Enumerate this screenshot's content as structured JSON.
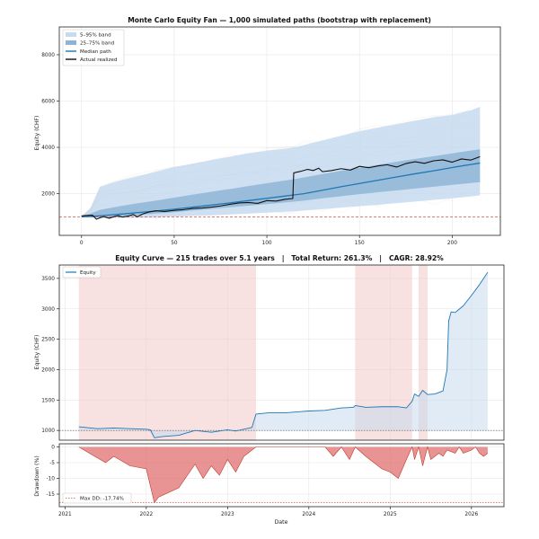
{
  "chart_data": [
    {
      "type": "area",
      "title": "Monte Carlo Equity Fan — 1,000 simulated paths (bootstrap with replacement)",
      "xlabel": "",
      "ylabel": "Equity (CHF)",
      "xlim": [
        -12,
        226
      ],
      "ylim": [
        200,
        9200
      ],
      "xticks": [
        0,
        50,
        100,
        150,
        200
      ],
      "yticks": [
        2000,
        4000,
        6000,
        8000
      ],
      "grid": true,
      "legend": {
        "position": "top-left",
        "entries": [
          "5–95% band",
          "25–75% band",
          "Median path",
          "Actual realized"
        ]
      },
      "reference_line": {
        "y": 1000,
        "style": "dashed",
        "color": "#d9534f"
      },
      "x": [
        0,
        5,
        10,
        20,
        30,
        40,
        50,
        60,
        70,
        80,
        90,
        100,
        110,
        115,
        120,
        130,
        140,
        150,
        160,
        170,
        180,
        190,
        200,
        210,
        215
      ],
      "series": [
        {
          "name": "5–95% band",
          "kind": "band",
          "lower": [
            1000,
            980,
            960,
            950,
            960,
            980,
            1010,
            1040,
            1070,
            1100,
            1140,
            1180,
            1220,
            1240,
            1270,
            1330,
            1400,
            1460,
            1520,
            1590,
            1660,
            1730,
            1800,
            1880,
            1930
          ],
          "upper": [
            1000,
            1400,
            2300,
            2550,
            2750,
            2950,
            3150,
            3300,
            3450,
            3600,
            3750,
            3850,
            3950,
            4000,
            4100,
            4300,
            4500,
            4700,
            4850,
            5000,
            5150,
            5300,
            5400,
            5600,
            5750
          ]
        },
        {
          "name": "25–75% band",
          "kind": "band",
          "lower": [
            1000,
            980,
            970,
            1020,
            1080,
            1140,
            1200,
            1270,
            1340,
            1410,
            1480,
            1550,
            1620,
            1660,
            1700,
            1800,
            1890,
            1980,
            2060,
            2140,
            2220,
            2300,
            2380,
            2460,
            2500
          ],
          "upper": [
            1000,
            1150,
            1300,
            1450,
            1580,
            1700,
            1830,
            1960,
            2080,
            2200,
            2330,
            2450,
            2570,
            2630,
            2700,
            2850,
            2990,
            3120,
            3250,
            3380,
            3500,
            3620,
            3740,
            3860,
            3920
          ]
        },
        {
          "name": "Median path",
          "kind": "line",
          "values": [
            1000,
            1020,
            1050,
            1110,
            1180,
            1250,
            1330,
            1420,
            1510,
            1600,
            1700,
            1800,
            1900,
            1950,
            2000,
            2150,
            2300,
            2440,
            2580,
            2720,
            2860,
            2990,
            3130,
            3260,
            3320
          ]
        }
      ],
      "actual": {
        "name": "Actual realized",
        "x": [
          0,
          3,
          6,
          8,
          10,
          12,
          15,
          18,
          20,
          22,
          25,
          28,
          30,
          33,
          36,
          40,
          45,
          50,
          55,
          60,
          65,
          70,
          75,
          80,
          85,
          90,
          95,
          100,
          105,
          110,
          114,
          114.5,
          118,
          122,
          125,
          128,
          130,
          135,
          140,
          145,
          150,
          155,
          160,
          165,
          170,
          175,
          180,
          185,
          190,
          195,
          200,
          205,
          210,
          215
        ],
        "y": [
          1040,
          1060,
          1070,
          900,
          960,
          1010,
          940,
          1020,
          1050,
          990,
          1030,
          1100,
          1000,
          1120,
          1200,
          1260,
          1230,
          1280,
          1310,
          1360,
          1380,
          1420,
          1470,
          1540,
          1600,
          1620,
          1580,
          1700,
          1680,
          1760,
          1790,
          2900,
          2960,
          3050,
          3000,
          3100,
          2950,
          3000,
          3080,
          3020,
          3180,
          3120,
          3200,
          3250,
          3150,
          3300,
          3380,
          3310,
          3420,
          3460,
          3360,
          3500,
          3450,
          3600
        ]
      }
    },
    {
      "type": "line",
      "title": "Equity Curve — 215 trades over 5.1 years   |   Total Return: 261.3%   |   CAGR: 28.92%",
      "xlabel": "",
      "ylabel": "Equity (CHF)",
      "xlim": [
        2020.93,
        2026.4
      ],
      "ylim": [
        840,
        3720
      ],
      "yticks": [
        1000,
        1500,
        2000,
        2500,
        3000,
        3500
      ],
      "grid": true,
      "legend": {
        "position": "top-left",
        "entries": [
          "Equity"
        ]
      },
      "reference_line": {
        "y": 1000,
        "style": "dotted",
        "color": "#555555"
      },
      "drawdown_periods": [
        [
          2021.17,
          2023.35
        ],
        [
          2024.57,
          2025.27
        ],
        [
          2025.35,
          2025.46
        ]
      ],
      "series": [
        {
          "name": "Equity",
          "x": [
            2021.17,
            2021.4,
            2021.6,
            2021.8,
            2022.0,
            2022.05,
            2022.1,
            2022.2,
            2022.4,
            2022.6,
            2022.8,
            2023.0,
            2023.1,
            2023.2,
            2023.3,
            2023.35,
            2023.5,
            2023.7,
            2023.9,
            2024.0,
            2024.2,
            2024.4,
            2024.55,
            2024.57,
            2024.7,
            2024.9,
            2025.1,
            2025.2,
            2025.27,
            2025.3,
            2025.35,
            2025.4,
            2025.46,
            2025.55,
            2025.65,
            2025.7,
            2025.72,
            2025.75,
            2025.8,
            2025.9,
            2026.0,
            2026.1,
            2026.2
          ],
          "values": [
            1060,
            1030,
            1040,
            1030,
            1020,
            1010,
            880,
            900,
            920,
            1000,
            970,
            1010,
            990,
            1020,
            1050,
            1270,
            1290,
            1290,
            1310,
            1320,
            1330,
            1370,
            1380,
            1410,
            1380,
            1390,
            1390,
            1370,
            1480,
            1600,
            1560,
            1660,
            1590,
            1600,
            1650,
            2000,
            2800,
            2950,
            2940,
            3050,
            3220,
            3400,
            3600
          ]
        }
      ]
    },
    {
      "type": "area",
      "title": "",
      "xlabel": "Date",
      "ylabel": "Drawdown (%)",
      "xlim": [
        2020.93,
        2026.4
      ],
      "ylim": [
        -19,
        1
      ],
      "xticks": [
        2021,
        2022,
        2023,
        2024,
        2025,
        2026
      ],
      "yticks": [
        0,
        -5,
        -10,
        -15
      ],
      "grid": true,
      "legend": {
        "position": "bottom-left",
        "entries": [
          "Max DD: -17.74%"
        ]
      },
      "reference_line": {
        "y": -17.74,
        "style": "dotted",
        "color": "#d9534f"
      },
      "series": [
        {
          "name": "Drawdown",
          "x": [
            2021.17,
            2021.3,
            2021.5,
            2021.6,
            2021.8,
            2022.0,
            2022.1,
            2022.15,
            2022.4,
            2022.6,
            2022.7,
            2022.8,
            2022.9,
            2023.0,
            2023.1,
            2023.2,
            2023.3,
            2023.35,
            2024.2,
            2024.3,
            2024.4,
            2024.5,
            2024.57,
            2024.7,
            2024.8,
            2024.9,
            2025.0,
            2025.1,
            2025.2,
            2025.27,
            2025.3,
            2025.35,
            2025.4,
            2025.46,
            2025.5,
            2025.6,
            2025.65,
            2025.7,
            2025.8,
            2025.85,
            2025.9,
            2026.0,
            2026.05,
            2026.1,
            2026.15,
            2026.2
          ],
          "values": [
            0,
            -2,
            -5,
            -3,
            -6,
            -7,
            -17.74,
            -16,
            -13,
            -5.5,
            -10,
            -6,
            -9,
            -4,
            -8,
            -3,
            -1,
            0,
            0,
            -3,
            0,
            -4,
            0,
            -3,
            -5,
            -7,
            -8,
            -10,
            -4,
            0,
            -4,
            0,
            -6,
            0,
            -4,
            -2,
            -3,
            -1,
            -2,
            0,
            -2,
            -1,
            0,
            -2,
            -3,
            -2
          ]
        }
      ]
    }
  ]
}
